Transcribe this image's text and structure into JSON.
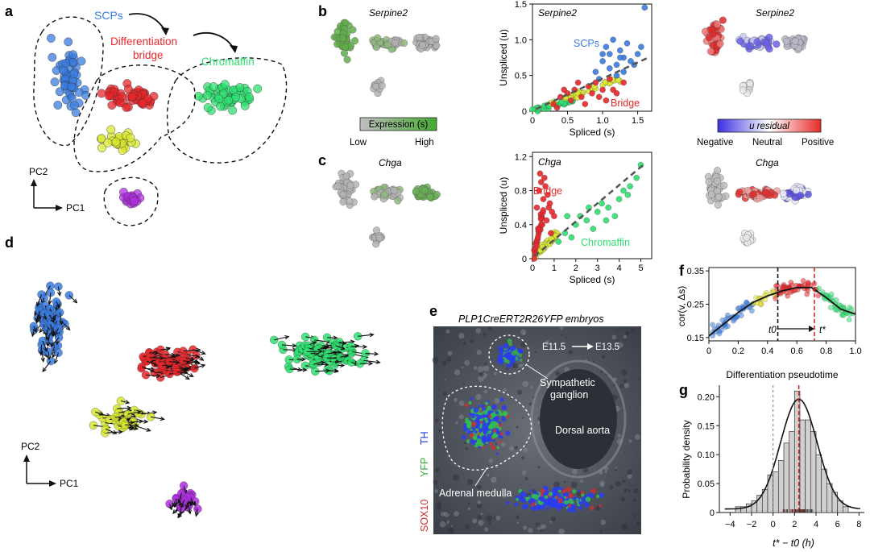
{
  "panels": {
    "a": "a",
    "b": "b",
    "c": "c",
    "d": "d",
    "e": "e",
    "f": "f",
    "g": "g"
  },
  "panel_a": {
    "scps": "SCPs",
    "diff_line1": "Differentiation",
    "diff_line2": "bridge",
    "chromaffin": "Chromaffin",
    "pc1": "PC1",
    "pc2": "PC2"
  },
  "panel_b": {
    "gene": "Serpine2",
    "colorbar_title": "Expression (s)",
    "low": "Low",
    "high": "High",
    "label_scps": "SCPs",
    "label_bridge": "Bridge",
    "resid_title": "u residual",
    "negative": "Negative",
    "neutral": "Neutral",
    "positive": "Positive"
  },
  "panel_c": {
    "gene": "Chga",
    "label_bridge": "Bridge",
    "label_chromaffin": "Chromaffin"
  },
  "panel_d": {
    "pc1": "PC1",
    "pc2": "PC2"
  },
  "panel_e": {
    "title": "PLP1CreERT2R26YFP embryos",
    "time_from": "E11.5",
    "time_to": "E13.5",
    "ganglion_line1": "Sympathetic",
    "ganglion_line2": "ganglion",
    "dorsal_aorta": "Dorsal aorta",
    "adrenal": "Adrenal medulla",
    "stain_th": "TH",
    "stain_yfp": "YFP",
    "stain_sox10": "SOX10"
  },
  "panel_f": {
    "ylabel": "cor(v, Δs)",
    "xlabel": "Differentiation pseudotime",
    "t0": "t0",
    "tstar": "t*"
  },
  "panel_g": {
    "ylabel": "Probability density",
    "xlabel": "t* − t0 (h)"
  },
  "colors": {
    "scp": "#3a7be0",
    "bridge": "#e8262a",
    "chromaffin": "#2ee070",
    "intermediate": "#d8e830",
    "purple": "#b02ee0",
    "grey": "#a8a8a8",
    "expression_green": "#4aa83a"
  },
  "chart_data": [
    {
      "id": "b-phase",
      "type": "scatter",
      "title": "Serpine2",
      "xlabel": "Spliced (s)",
      "ylabel": "Unspliced (u)",
      "xlim": [
        0,
        1.7
      ],
      "ylim": [
        0,
        1.5
      ],
      "xticks": [
        "0",
        "0.5",
        "1.0",
        "1.5"
      ],
      "yticks": [
        "0",
        "0.5",
        "1.0",
        "1.5"
      ],
      "series": [
        {
          "name": "SCPs",
          "color": "#3a7be0",
          "x": [
            0.9,
            1.0,
            1.1,
            1.2,
            1.3,
            1.05,
            1.15,
            1.25,
            1.35,
            1.4,
            1.5,
            1.6,
            0.95,
            1.1,
            1.2,
            1.3,
            1.45,
            1.55,
            1.0,
            1.25
          ],
          "y": [
            0.55,
            0.7,
            0.8,
            0.65,
            0.75,
            0.9,
            1.0,
            0.85,
            0.95,
            0.7,
            0.8,
            1.45,
            0.45,
            0.6,
            0.5,
            0.55,
            0.65,
            0.9,
            0.8,
            0.75
          ]
        },
        {
          "name": "Bridge",
          "color": "#e8262a",
          "x": [
            0.3,
            0.4,
            0.5,
            0.6,
            0.7,
            0.8,
            0.9,
            1.0,
            1.1,
            1.2,
            0.35,
            0.55,
            0.75,
            0.95,
            1.15,
            1.3,
            0.45,
            0.65,
            0.85,
            1.05
          ],
          "y": [
            0.1,
            0.2,
            0.25,
            0.3,
            0.2,
            0.35,
            0.4,
            0.3,
            0.45,
            0.25,
            0.05,
            0.15,
            0.1,
            0.2,
            0.3,
            0.4,
            0.3,
            0.4,
            0.25,
            0.15
          ]
        }
      ]
    },
    {
      "id": "c-phase",
      "type": "scatter",
      "title": "Chga",
      "xlabel": "Spliced (s)",
      "ylabel": "Unspliced (u)",
      "xlim": [
        0,
        5.5
      ],
      "ylim": [
        0,
        1.25
      ],
      "xticks": [
        "0",
        "1",
        "2",
        "3",
        "4",
        "5"
      ],
      "yticks": [
        "0",
        "0.4",
        "0.8",
        "1.2"
      ],
      "series": [
        {
          "name": "Bridge",
          "color": "#e8262a",
          "x": [
            0.2,
            0.3,
            0.4,
            0.5,
            0.6,
            0.7,
            0.8,
            0.9,
            1.0,
            0.35,
            0.55,
            0.75,
            0.45,
            0.65,
            0.85,
            0.25
          ],
          "y": [
            0.6,
            0.8,
            0.9,
            0.7,
            0.85,
            0.75,
            0.65,
            0.55,
            0.5,
            1.0,
            0.95,
            0.6,
            0.4,
            0.45,
            0.3,
            0.25
          ]
        },
        {
          "name": "Chromaffin",
          "color": "#2ee070",
          "x": [
            1.5,
            2.0,
            2.5,
            3.0,
            3.5,
            4.0,
            4.5,
            5.0,
            1.8,
            2.2,
            2.8,
            3.2,
            3.8,
            4.2,
            4.8,
            2.6,
            3.4,
            4.4,
            1.2,
            1.6
          ],
          "y": [
            0.3,
            0.4,
            0.45,
            0.55,
            0.6,
            0.7,
            0.85,
            1.1,
            0.25,
            0.5,
            0.35,
            0.65,
            0.5,
            0.8,
            0.95,
            0.6,
            0.45,
            0.75,
            0.2,
            0.5
          ]
        }
      ]
    },
    {
      "id": "f",
      "type": "scatter",
      "xlabel": "Differentiation pseudotime",
      "ylabel": "cor(v, Δs)",
      "xlim": [
        0,
        1.0
      ],
      "ylim": [
        0.14,
        0.36
      ],
      "xticks": [
        "0",
        "0.2",
        "0.4",
        "0.6",
        "0.8",
        "1.0"
      ],
      "yticks": [
        "0.15",
        "0.25",
        "0.35"
      ],
      "vlines": [
        0.47,
        0.72
      ],
      "trend_x": [
        0.0,
        0.1,
        0.2,
        0.3,
        0.4,
        0.5,
        0.6,
        0.7,
        0.8,
        0.9,
        1.0
      ],
      "trend_y": [
        0.155,
        0.19,
        0.225,
        0.255,
        0.275,
        0.29,
        0.3,
        0.3,
        0.27,
        0.235,
        0.22
      ]
    },
    {
      "id": "g",
      "type": "bar",
      "xlabel": "t* − t0 (h)",
      "ylabel": "Probability density",
      "xlim": [
        -5,
        8.5
      ],
      "ylim": [
        0,
        0.22
      ],
      "xticks": [
        "−4",
        "−2",
        "0",
        "2",
        "4",
        "6",
        "8"
      ],
      "yticks": [
        "0",
        "0.05",
        "0.10",
        "0.15",
        "0.20"
      ],
      "bin_edges": [
        -3.5,
        -3,
        -2.5,
        -2,
        -1.5,
        -1,
        -0.5,
        0,
        0.5,
        1,
        1.5,
        2,
        2.5,
        3,
        3.5,
        4,
        4.5,
        5,
        5.5,
        6,
        6.5,
        7
      ],
      "values": [
        0.01,
        0.01,
        0.015,
        0.02,
        0.03,
        0.04,
        0.065,
        0.07,
        0.09,
        0.12,
        0.14,
        0.21,
        0.16,
        0.16,
        0.14,
        0.1,
        0.075,
        0.05,
        0.035,
        0.02,
        0.01
      ],
      "vlines": [
        0,
        2.4
      ]
    }
  ]
}
